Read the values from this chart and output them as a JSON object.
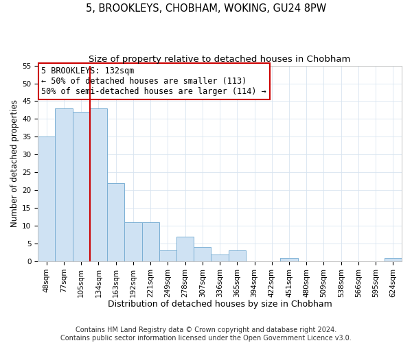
{
  "title": "5, BROOKLEYS, CHOBHAM, WOKING, GU24 8PW",
  "subtitle": "Size of property relative to detached houses in Chobham",
  "xlabel": "Distribution of detached houses by size in Chobham",
  "ylabel": "Number of detached properties",
  "bar_labels": [
    "48sqm",
    "77sqm",
    "105sqm",
    "134sqm",
    "163sqm",
    "192sqm",
    "221sqm",
    "249sqm",
    "278sqm",
    "307sqm",
    "336sqm",
    "365sqm",
    "394sqm",
    "422sqm",
    "451sqm",
    "480sqm",
    "509sqm",
    "538sqm",
    "566sqm",
    "595sqm",
    "624sqm"
  ],
  "bar_values": [
    35,
    43,
    42,
    43,
    22,
    11,
    11,
    3,
    7,
    4,
    2,
    3,
    0,
    0,
    1,
    0,
    0,
    0,
    0,
    0,
    1
  ],
  "bar_color": "#cfe2f3",
  "bar_edgecolor": "#7bafd4",
  "vline_color": "#cc0000",
  "vline_position": 3.5,
  "ylim": [
    0,
    55
  ],
  "yticks": [
    0,
    5,
    10,
    15,
    20,
    25,
    30,
    35,
    40,
    45,
    50,
    55
  ],
  "annotation_title": "5 BROOKLEYS: 132sqm",
  "annotation_line1": "← 50% of detached houses are smaller (113)",
  "annotation_line2": "50% of semi-detached houses are larger (114) →",
  "annotation_box_facecolor": "#ffffff",
  "annotation_box_edgecolor": "#cc0000",
  "footer_line1": "Contains HM Land Registry data © Crown copyright and database right 2024.",
  "footer_line2": "Contains public sector information licensed under the Open Government Licence v3.0.",
  "title_fontsize": 10.5,
  "subtitle_fontsize": 9.5,
  "xlabel_fontsize": 9,
  "ylabel_fontsize": 8.5,
  "tick_fontsize": 7.5,
  "annotation_fontsize": 8.5,
  "footer_fontsize": 7
}
